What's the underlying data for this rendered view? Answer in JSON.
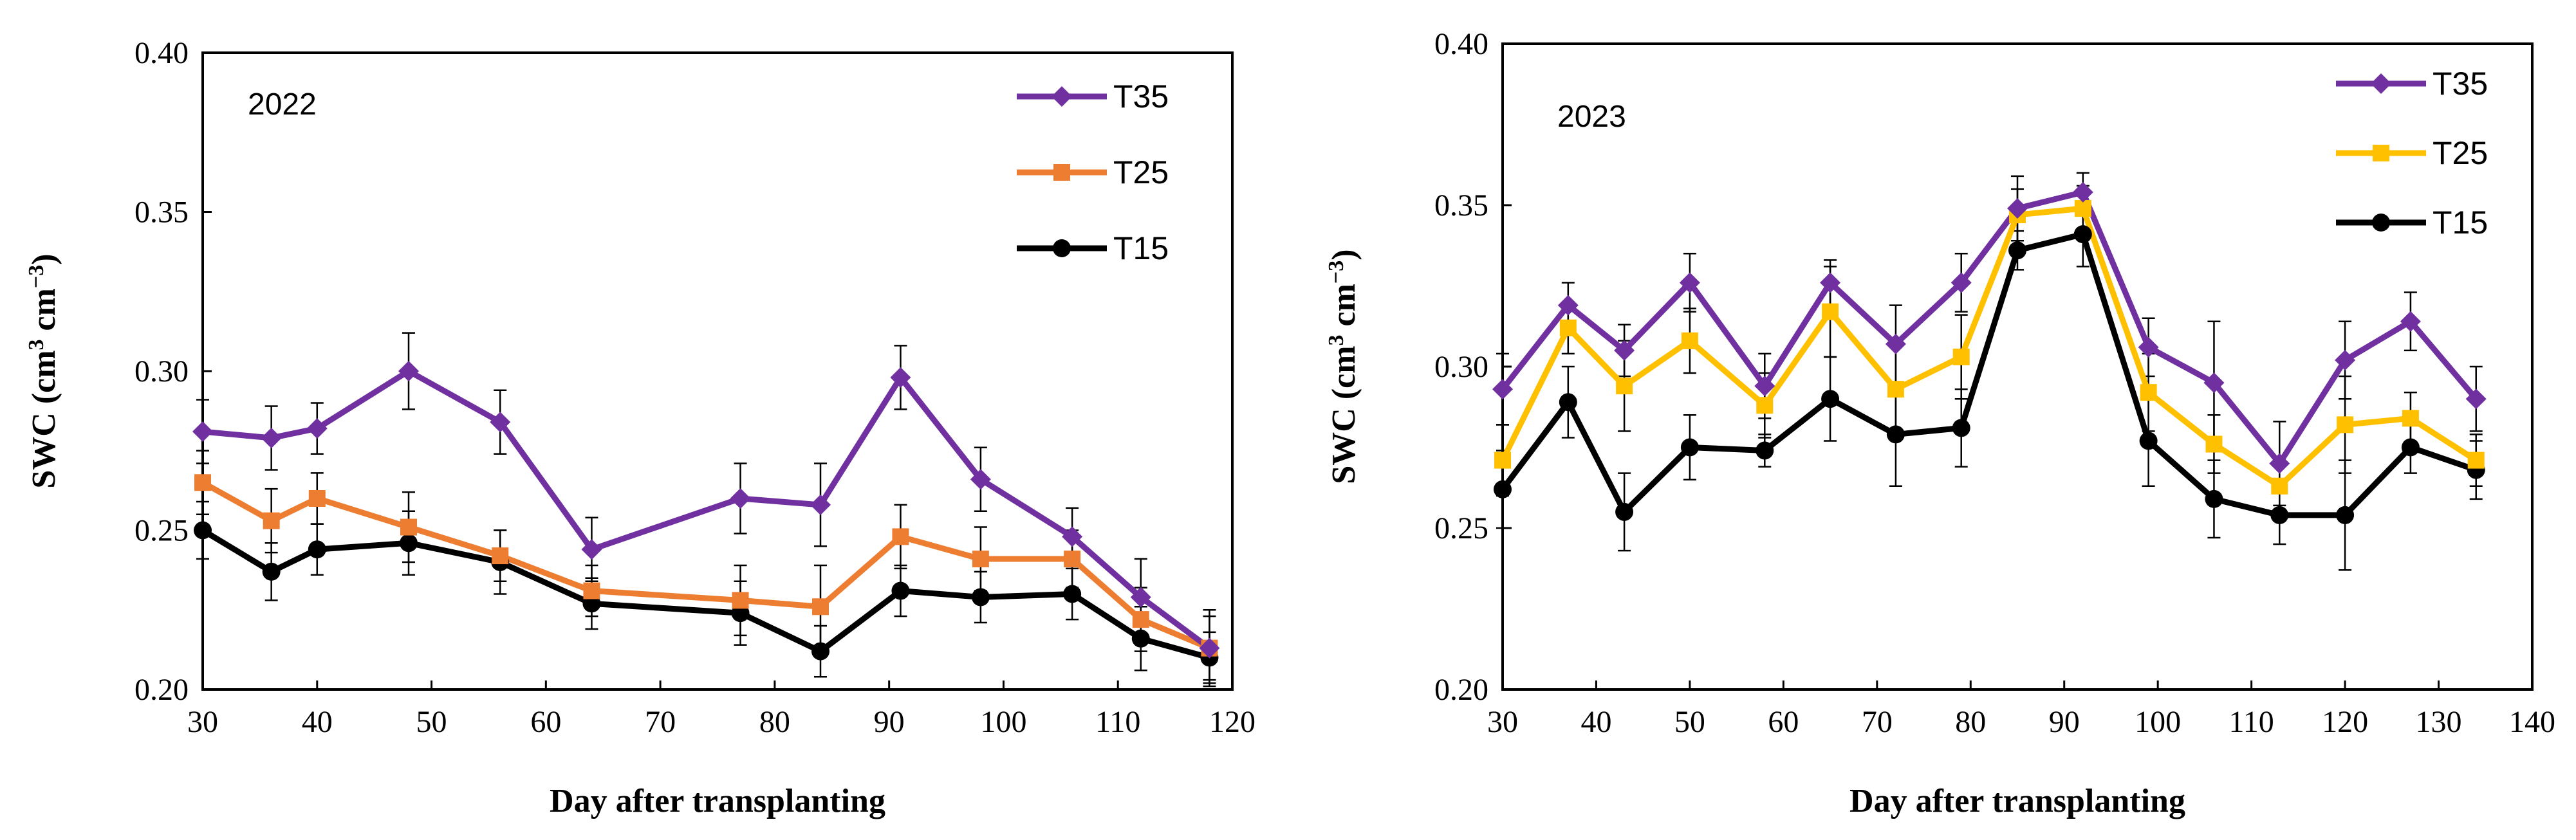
{
  "chart_data": [
    {
      "type": "line",
      "panel_label": "2022",
      "xlabel": "Day after transplanting",
      "ylabel_main": "SWC  (cm",
      "ylabel_mid": " cm",
      "ylabel_close": ")",
      "ylabel_sup1": "3",
      "ylabel_sup2": "−3",
      "xlim": [
        30,
        120
      ],
      "ylim": [
        0.2,
        0.4
      ],
      "xticks": [
        "30",
        "40",
        "50",
        "60",
        "70",
        "80",
        "90",
        "100",
        "110",
        "120"
      ],
      "yticks": [
        "0.20",
        "0.25",
        "0.30",
        "0.35",
        "0.40"
      ],
      "x": [
        30,
        36,
        40,
        48,
        56,
        64,
        77,
        84,
        91,
        98,
        106,
        112,
        118
      ],
      "series": [
        {
          "name": "T35",
          "color": "#7030A0",
          "marker": "diamond",
          "values": [
            0.281,
            0.279,
            0.282,
            0.3,
            0.284,
            0.244,
            0.26,
            0.258,
            0.298,
            0.266,
            0.248,
            0.229,
            0.213
          ],
          "errors": [
            0.01,
            0.01,
            0.008,
            0.012,
            0.01,
            0.01,
            0.011,
            0.013,
            0.01,
            0.01,
            0.009,
            0.012,
            0.012
          ]
        },
        {
          "name": "T25",
          "color": "#ED7D31",
          "marker": "square",
          "values": [
            0.265,
            0.253,
            0.26,
            0.251,
            0.242,
            0.231,
            0.228,
            0.226,
            0.248,
            0.241,
            0.241,
            0.222,
            0.213
          ],
          "errors": [
            0.01,
            0.01,
            0.008,
            0.011,
            0.008,
            0.008,
            0.011,
            0.013,
            0.01,
            0.01,
            0.009,
            0.01,
            0.01
          ]
        },
        {
          "name": "T15",
          "color": "#000000",
          "marker": "circle",
          "values": [
            0.25,
            0.237,
            0.244,
            0.246,
            0.24,
            0.227,
            0.224,
            0.212,
            0.231,
            0.229,
            0.23,
            0.216,
            0.21
          ],
          "errors": [
            0.009,
            0.009,
            0.008,
            0.01,
            0.01,
            0.008,
            0.01,
            0.008,
            0.008,
            0.008,
            0.008,
            0.01,
            0.008
          ]
        }
      ],
      "legend_position": "top-right",
      "grid": false
    },
    {
      "type": "line",
      "panel_label": "2023",
      "xlabel": "Day after transplanting",
      "ylabel_main": "SWC (cm",
      "ylabel_mid": " cm",
      "ylabel_close": ")",
      "ylabel_sup1": "3",
      "ylabel_sup2": "−3",
      "xlim": [
        30,
        140
      ],
      "ylim": [
        0.2,
        0.4
      ],
      "xticks": [
        "30",
        "40",
        "50",
        "60",
        "70",
        "80",
        "90",
        "100",
        "110",
        "120",
        "130",
        "140"
      ],
      "yticks": [
        "0.20",
        "0.25",
        "0.30",
        "0.35",
        "0.40"
      ],
      "x": [
        30,
        37,
        43,
        50,
        58,
        65,
        72,
        79,
        85,
        92,
        99,
        106,
        113,
        120,
        127,
        134
      ],
      "series": [
        {
          "name": "T35",
          "color": "#7030A0",
          "marker": "diamond",
          "values": [
            0.293,
            0.319,
            0.305,
            0.326,
            0.294,
            0.326,
            0.307,
            0.326,
            0.349,
            0.354,
            0.306,
            0.295,
            0.27,
            0.302,
            0.314,
            0.29
          ],
          "errors": [
            0.011,
            0.007,
            0.008,
            0.009,
            0.01,
            0.007,
            0.012,
            0.009,
            0.01,
            0.006,
            0.009,
            0.019,
            0.013,
            0.012,
            0.009,
            0.01
          ]
        },
        {
          "name": "T25",
          "color": "#FFC000",
          "marker": "square",
          "values": [
            0.271,
            0.312,
            0.294,
            0.308,
            0.288,
            0.317,
            0.293,
            0.303,
            0.347,
            0.349,
            0.292,
            0.276,
            0.263,
            0.282,
            0.284,
            0.271
          ],
          "errors": [
            0.011,
            0.008,
            0.014,
            0.01,
            0.01,
            0.014,
            0.013,
            0.013,
            0.008,
            0.007,
            0.012,
            0.009,
            0.009,
            0.015,
            0.008,
            0.008
          ]
        },
        {
          "name": "T15",
          "color": "#000000",
          "marker": "circle",
          "values": [
            0.262,
            0.289,
            0.255,
            0.275,
            0.274,
            0.29,
            0.279,
            0.281,
            0.336,
            0.341,
            0.277,
            0.259,
            0.254,
            0.254,
            0.275,
            0.268
          ],
          "errors": [
            0.012,
            0.011,
            0.012,
            0.01,
            0.005,
            0.013,
            0.016,
            0.012,
            0.006,
            0.01,
            0.014,
            0.012,
            0.009,
            0.017,
            0.008,
            0.009
          ]
        }
      ],
      "legend_position": "top-right",
      "grid": false
    }
  ]
}
